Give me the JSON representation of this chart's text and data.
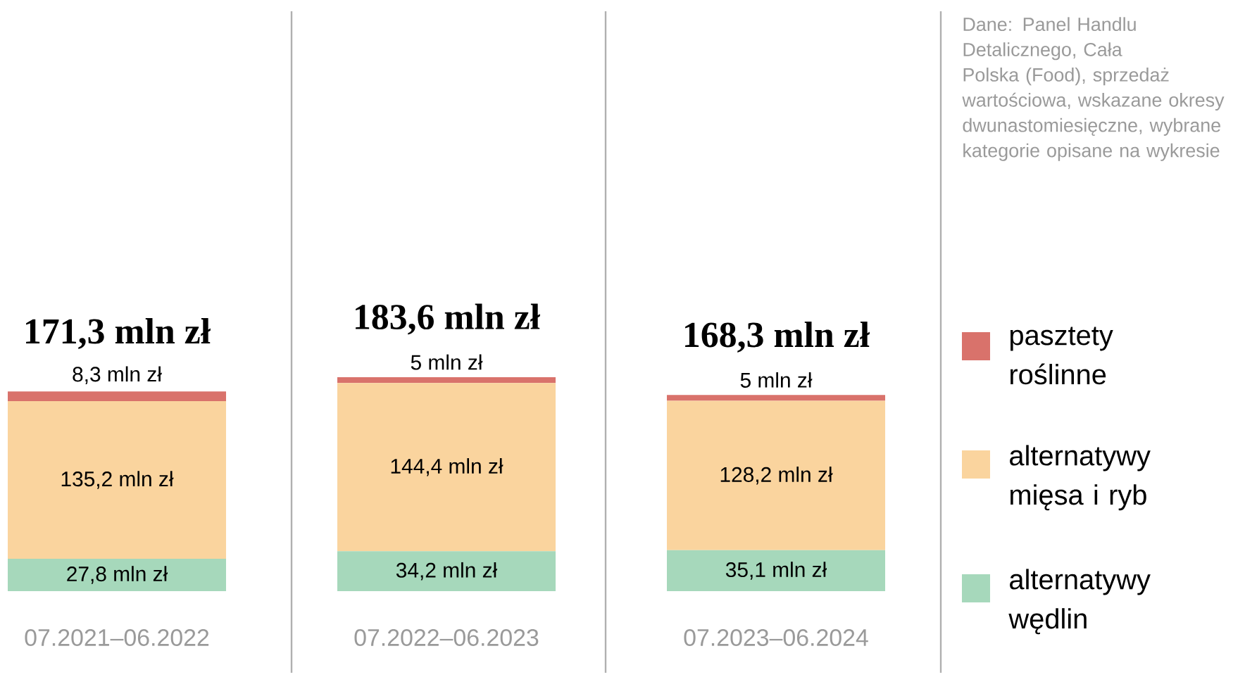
{
  "chart_data": {
    "type": "bar",
    "stacked": true,
    "legend": "right",
    "categories": [
      "07.2021–06.2022",
      "07.2022–06.2023",
      "07.2023–06.2024"
    ],
    "series": [
      {
        "name": "alternatywy wędlin",
        "color": "#a6d8bb",
        "values": [
          27.8,
          34.2,
          35.1
        ],
        "value_labels": [
          "27,8 mln zł",
          "34,2 mln zł",
          "35,1 mln zł"
        ]
      },
      {
        "name": "alternatywy mięsa i ryb",
        "color": "#fad49e",
        "values": [
          135.2,
          144.4,
          128.2
        ],
        "value_labels": [
          "135,2 mln zł",
          "144,4 mln zł",
          "128,2 mln zł"
        ]
      },
      {
        "name": "pasztety roślinne",
        "color": "#d9726b",
        "values": [
          8.3,
          5,
          5
        ],
        "value_labels": [
          "8,3 mln zł",
          "5 mln zł",
          "5 mln zł"
        ]
      }
    ],
    "totals": [
      "171,3 mln zł",
      "183,6 mln zł",
      "168,3 mln zł"
    ],
    "annotations": [
      "Dane: Panel Handlu Detalicznego, Cała Polska (Food), sprzedaż wartościowa, wskazane okresy dwunastomiesięczne, wybrane kategorie opisane na wykresie"
    ]
  }
}
